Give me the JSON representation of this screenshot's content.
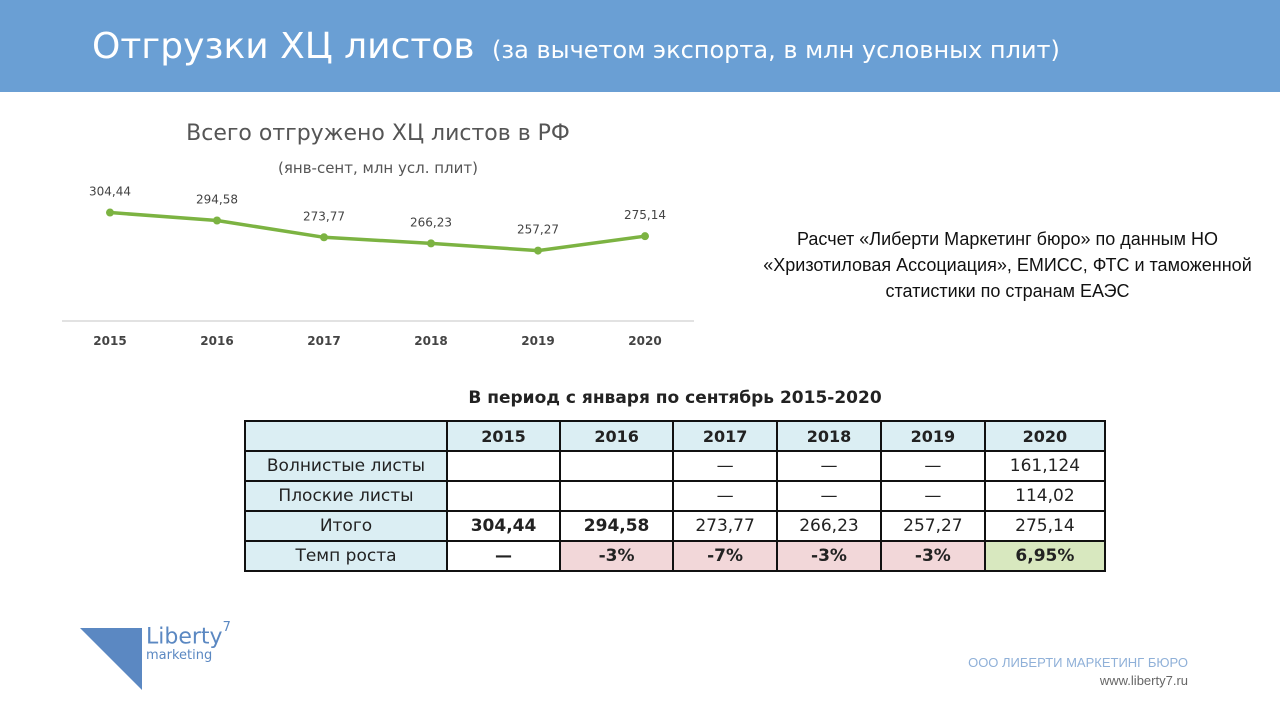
{
  "header": {
    "title": "Отгрузки ХЦ листов",
    "subtitle": "(за вычетом экспорта, в млн условных плит)"
  },
  "chart_data": {
    "type": "line",
    "title": "Всего отгружено ХЦ листов в РФ",
    "subtitle": "(янв-сент, млн усл. плит)",
    "categories": [
      "2015",
      "2016",
      "2017",
      "2018",
      "2019",
      "2020"
    ],
    "values": [
      304.44,
      294.58,
      273.77,
      266.23,
      257.27,
      275.14
    ],
    "value_labels": [
      "304,44",
      "294,58",
      "273,77",
      "266,23",
      "257,27",
      "275,14"
    ],
    "ylim": [
      170,
      320
    ],
    "grid": false,
    "line_color": "#7cb342"
  },
  "source_note": "Расчет «Либерти Маркетинг бюро» по данным НО «Хризотиловая Ассоциация», ЕМИСС, ФТС и таможенной статистики по странам ЕАЭС",
  "table": {
    "title": "В период с января по сентябрь 2015-2020",
    "columns": [
      "",
      "2015",
      "2016",
      "2017",
      "2018",
      "2019",
      "2020"
    ],
    "rows": [
      {
        "label": "Волнистые листы",
        "cells": [
          "",
          "",
          "—",
          "—",
          "—",
          "161,124"
        ]
      },
      {
        "label": "Плоские листы",
        "cells": [
          "",
          "",
          "—",
          "—",
          "—",
          "114,02"
        ]
      },
      {
        "label": "Итого",
        "cells": [
          "304,44",
          "294,58",
          "273,77",
          "266,23",
          "257,27",
          "275,14"
        ]
      },
      {
        "label": "Темп роста",
        "cells": [
          "—",
          "-3%",
          "-7%",
          "-3%",
          "-3%",
          "6,95%"
        ]
      }
    ],
    "colors": {
      "header_bg": "#dbeef3",
      "negative_bg": "#f2d7d9",
      "positive_bg": "#d8e8bf"
    }
  },
  "logo": {
    "name": "Liberty",
    "superscript": "7",
    "tagline": "marketing"
  },
  "footer": {
    "company": "ООО ЛИБЕРТИ МАРКЕТИНГ БЮРО",
    "site": "www.liberty7.ru"
  }
}
